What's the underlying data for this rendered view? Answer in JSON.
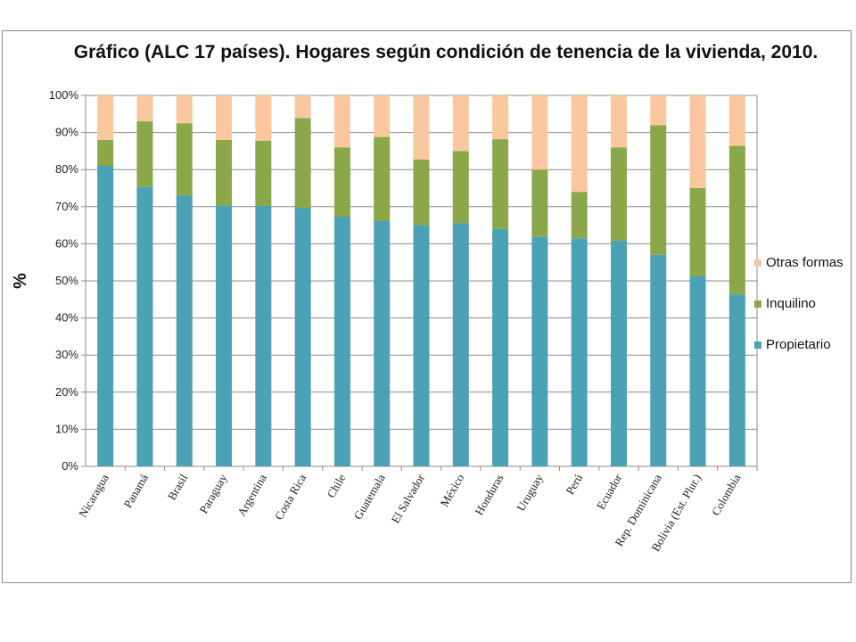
{
  "chart_data": {
    "type": "bar",
    "stacked": true,
    "title": "Gráfico (ALC 17 países). Hogares según condición de tenencia de la vivienda, 2010.",
    "ylabel": "%",
    "xlabel": "",
    "ylim": [
      0,
      100
    ],
    "yticks": [
      "0%",
      "10%",
      "20%",
      "30%",
      "40%",
      "50%",
      "60%",
      "70%",
      "80%",
      "90%",
      "100%"
    ],
    "grid": "horizontal",
    "legend_position": "right",
    "categories": [
      "Nicaragua",
      "Panamá",
      "Brasil",
      "Paraguay",
      "Argentina",
      "Costa Rica",
      "Chile",
      "Guatemala",
      "El Salvador",
      "México",
      "Honduras",
      "Uruguay",
      "Perú",
      "Ecuador",
      "Rep. Dominicana",
      "Bolivia (Est. Plur.)",
      "Colombia"
    ],
    "series": [
      {
        "name": "Propietario",
        "color": "#4ba1b6",
        "values": [
          81,
          75.3,
          73,
          70.3,
          70.2,
          69.7,
          67.3,
          66.2,
          65,
          65.5,
          64,
          61.8,
          61.5,
          60.8,
          57,
          51.3,
          46.3
        ]
      },
      {
        "name": "Inquilino",
        "color": "#8aa84a",
        "values": [
          7,
          17.7,
          19.5,
          17.7,
          17.6,
          24.2,
          18.7,
          22.6,
          17.7,
          19.5,
          24.2,
          18.2,
          12.5,
          25.2,
          35,
          23.7,
          40.1
        ]
      },
      {
        "name": "Otras formas",
        "color": "#fbc79f",
        "values": [
          12,
          7,
          7.5,
          12,
          12.2,
          6.1,
          14,
          11.2,
          17.3,
          15,
          11.8,
          20,
          26,
          14,
          8,
          25,
          13.6
        ]
      }
    ]
  }
}
